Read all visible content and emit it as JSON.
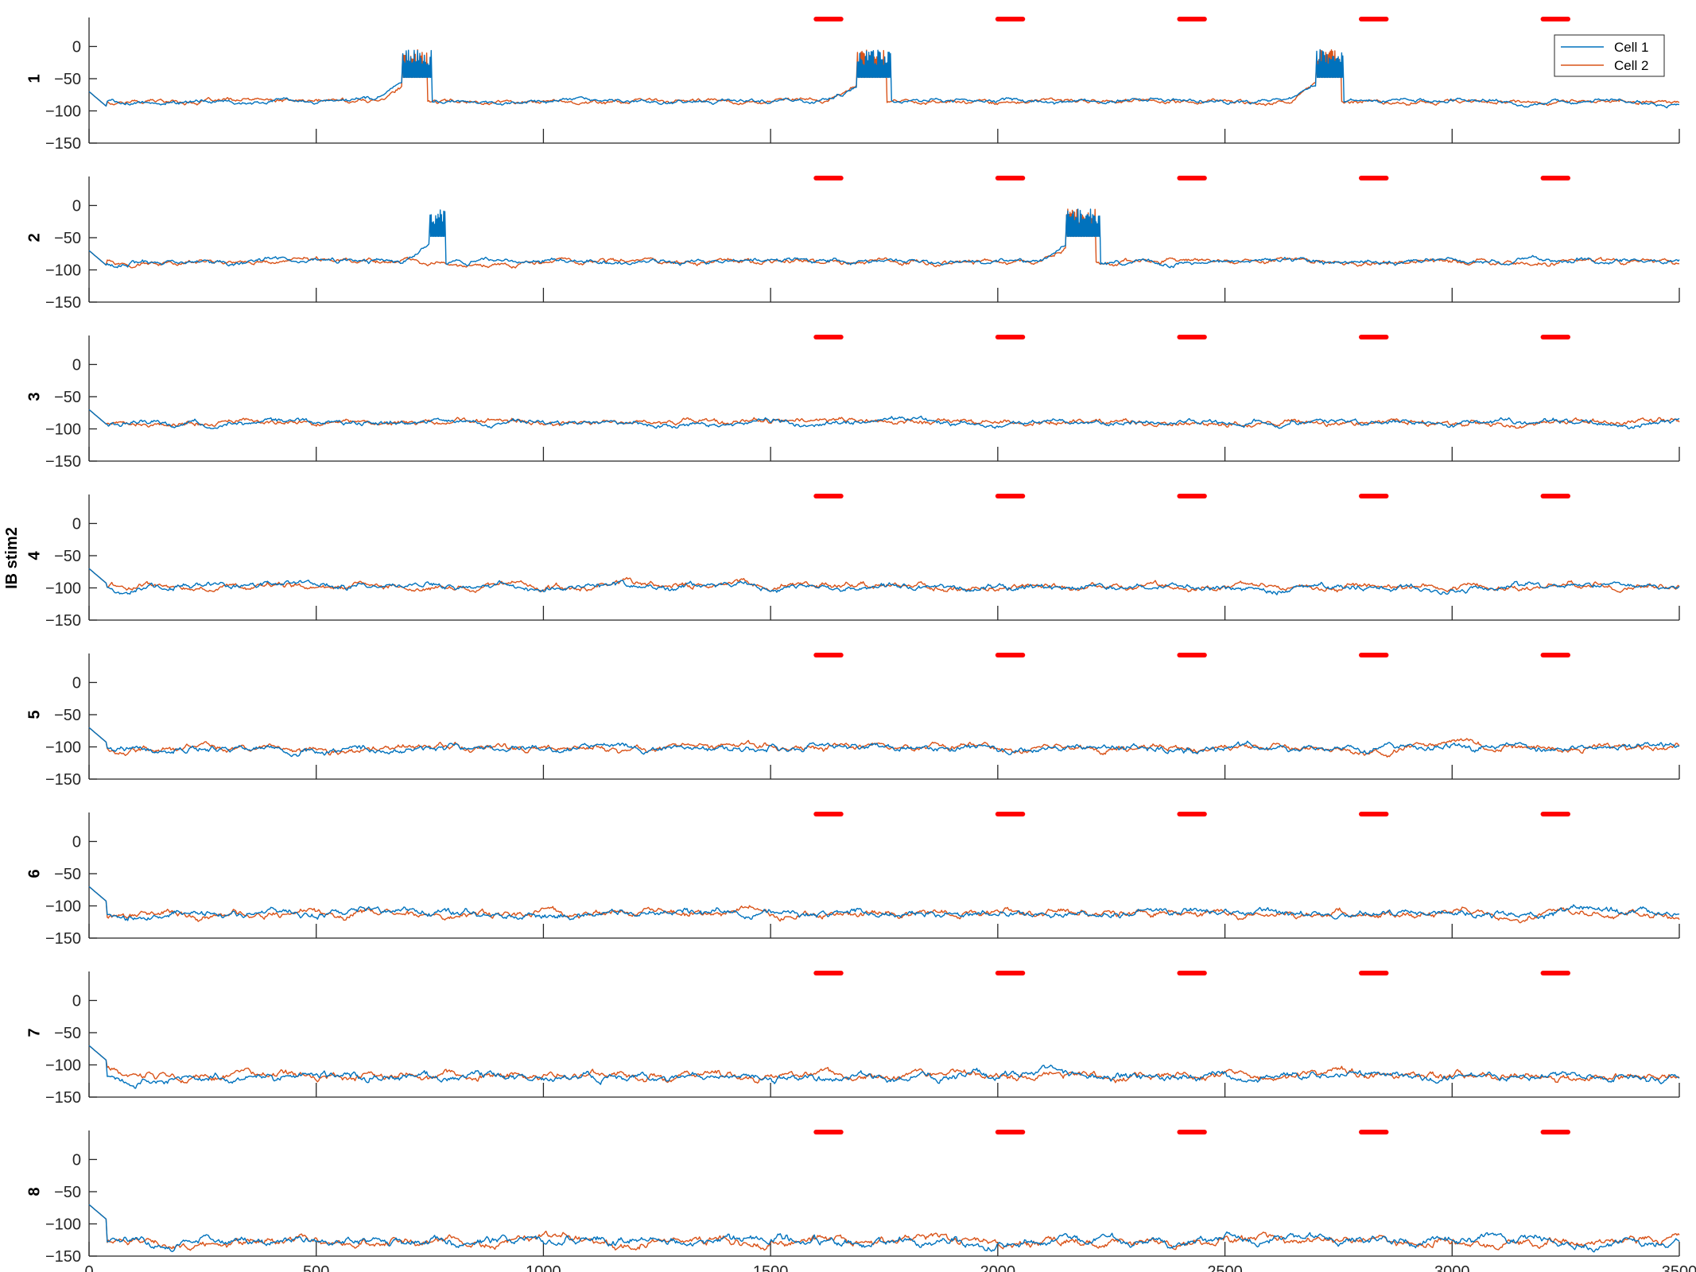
{
  "chart_data": {
    "type": "line",
    "ylabel": "IB stim2",
    "xlim": [
      0,
      3500
    ],
    "ylim": [
      -150,
      45
    ],
    "x_ticks": [
      "0",
      "500",
      "1000",
      "1500",
      "2000",
      "2500",
      "3000",
      "3500"
    ],
    "y_ticks": [
      "0",
      "−50",
      "−100",
      "−150"
    ],
    "legend": {
      "position": "top-right",
      "entries": [
        "Cell 1",
        "Cell 2"
      ]
    },
    "colors": {
      "cell1": "#0072BD",
      "cell2": "#D95319",
      "stimulus": "#FF0000",
      "axis": "#262626"
    },
    "stimulus_windows": [
      [
        1600,
        1655
      ],
      [
        2000,
        2055
      ],
      [
        2400,
        2455
      ],
      [
        2800,
        2855
      ],
      [
        3200,
        3255
      ]
    ],
    "panels": [
      {
        "label": "1",
        "baseline": -85,
        "cell1_bursts": [
          [
            690,
            755
          ],
          [
            1690,
            1765
          ],
          [
            2700,
            2760
          ]
        ],
        "cell2_bursts": [
          [
            690,
            745
          ],
          [
            1690,
            1755
          ],
          [
            2700,
            2755
          ]
        ]
      },
      {
        "label": "2",
        "baseline": -87,
        "cell1_bursts": [
          [
            750,
            785
          ],
          [
            2150,
            2225
          ]
        ],
        "cell2_bursts": [
          [
            2150,
            2215
          ]
        ]
      },
      {
        "label": "3",
        "baseline": -90,
        "cell1_bursts": [],
        "cell2_bursts": []
      },
      {
        "label": "4",
        "baseline": -98,
        "cell1_bursts": [],
        "cell2_bursts": []
      },
      {
        "label": "5",
        "baseline": -102,
        "cell1_bursts": [],
        "cell2_bursts": []
      },
      {
        "label": "6",
        "baseline": -112,
        "cell1_bursts": [],
        "cell2_bursts": []
      },
      {
        "label": "7",
        "baseline": -118,
        "cell1_bursts": [],
        "cell2_bursts": []
      },
      {
        "label": "8",
        "baseline": -127,
        "cell1_bursts": [],
        "cell2_bursts": []
      }
    ]
  }
}
